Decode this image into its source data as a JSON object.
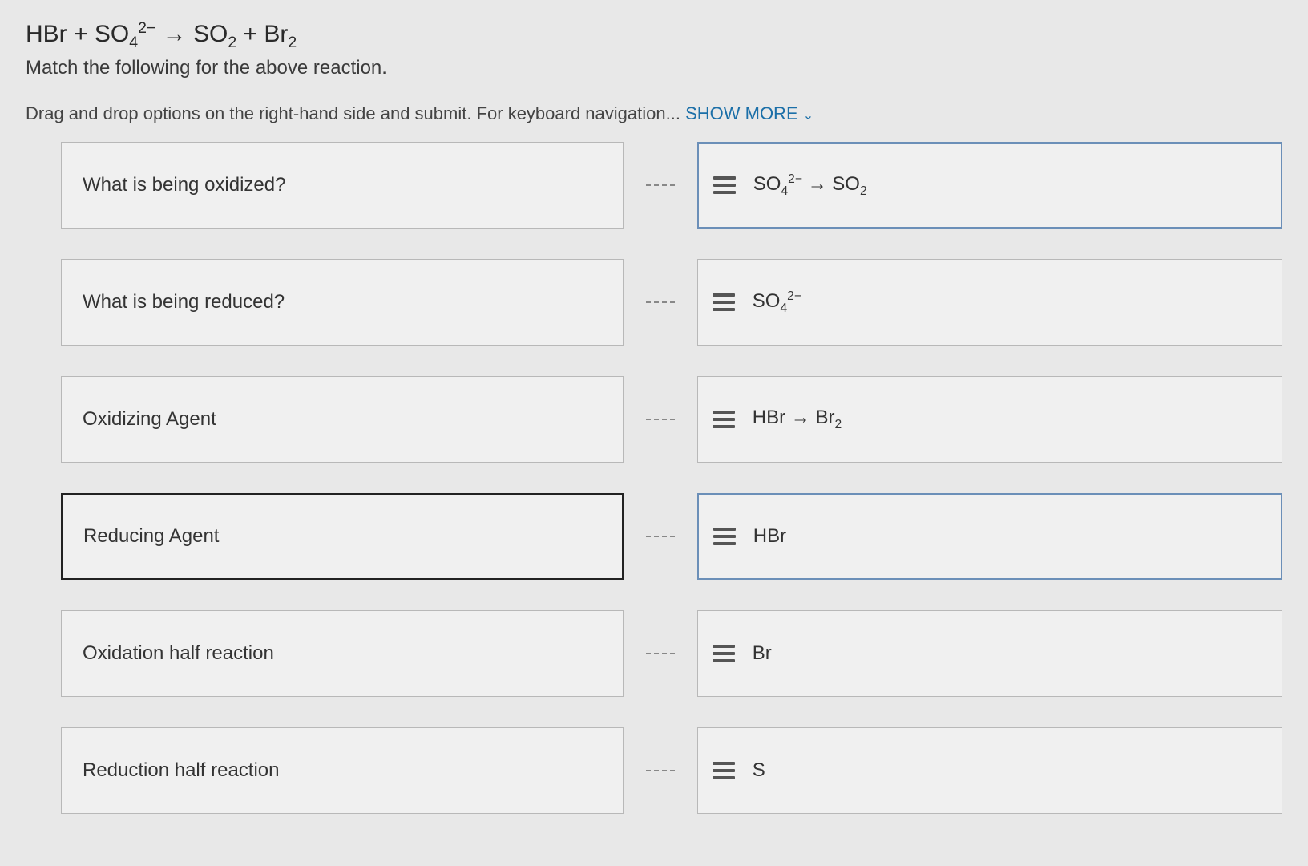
{
  "equation_html": "HBr + SO<sub>4</sub><sup>2−</sup> → SO<sub>2</sub> + Br<sub>2</sub>",
  "instruction": "Match the following for the above reaction.",
  "helper_text": "Drag and drop options on the right-hand side and submit. For keyboard navigation... ",
  "show_more": "SHOW MORE",
  "prompts": [
    {
      "label": "What is being oxidized?",
      "selected": false
    },
    {
      "label": "What is being reduced?",
      "selected": false
    },
    {
      "label": "Oxidizing Agent",
      "selected": false
    },
    {
      "label": "Reducing Agent",
      "selected": true
    },
    {
      "label": "Oxidation half reaction",
      "selected": false
    },
    {
      "label": "Reduction half reaction",
      "selected": false
    }
  ],
  "options": [
    {
      "html": "SO<sub>4</sub><sup>2−</sup> → SO<sub>2</sub>",
      "highlighted": true
    },
    {
      "html": "SO<sub>4</sub><sup>2−</sup>",
      "highlighted": false
    },
    {
      "html": "HBr → Br<sub>2</sub>",
      "highlighted": false
    },
    {
      "html": "HBr",
      "highlighted": true
    },
    {
      "html": "Br",
      "highlighted": false
    },
    {
      "html": "S",
      "highlighted": false
    }
  ],
  "colors": {
    "background": "#e8e8e8",
    "box_bg": "#f0f0f0",
    "box_border": "#b8b8b8",
    "selected_border": "#222222",
    "highlight_border": "#6b8fb8",
    "link_color": "#1b6fa8",
    "text": "#333333"
  }
}
